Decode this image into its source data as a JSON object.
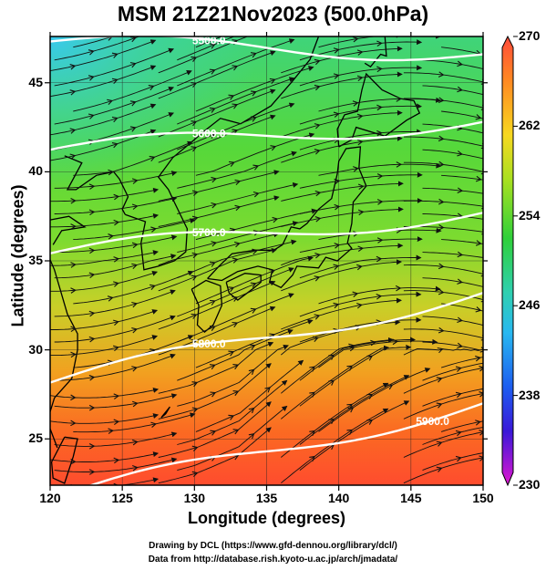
{
  "title": "MSM 21Z21Nov2023 (500.0hPa)",
  "axes": {
    "xlabel": "Longitude (degrees)",
    "ylabel": "Latitude  (degrees)",
    "xticks": [
      "120",
      "125",
      "130",
      "135",
      "140",
      "145",
      "150"
    ],
    "yticks": [
      "45",
      "40",
      "35",
      "30",
      "25"
    ],
    "xrange": [
      120,
      150
    ],
    "yrange": [
      22.4,
      47.6
    ]
  },
  "colorbar": {
    "ticks": [
      "270",
      "262",
      "254",
      "246",
      "238",
      "230"
    ],
    "min": 230,
    "max": 270,
    "units_hint": "temperature-like scalar"
  },
  "contours": [
    {
      "label": "5500.0",
      "lat_at_125": 47.2,
      "lat_at_150": 46.6
    },
    {
      "label": "5600.0",
      "lat_at_125": 41.5,
      "lat_at_150": 42.8
    },
    {
      "label": "5700.0",
      "lat_at_125": 35.8,
      "lat_at_150": 37.7
    },
    {
      "label": "5800.0",
      "lat_at_125": 29.0,
      "lat_at_150": 33.2
    },
    {
      "label": "5900.0",
      "lat_at_125": 22.5,
      "lat_at_150": 27.0
    }
  ],
  "credits": {
    "line1": "Drawing by DCL (https://www.gfd-dennou.org/library/dcl/)",
    "line2": "Data from http://database.rish.kyoto-u.ac.jp/arch/jmadata/"
  },
  "colors": {
    "cool": "#3cc8e6",
    "mid": "#3fd23c",
    "warm": "#f0a020",
    "hot": "#ff4a2a",
    "contour": "#ffffff",
    "arrows": "#111111"
  }
}
